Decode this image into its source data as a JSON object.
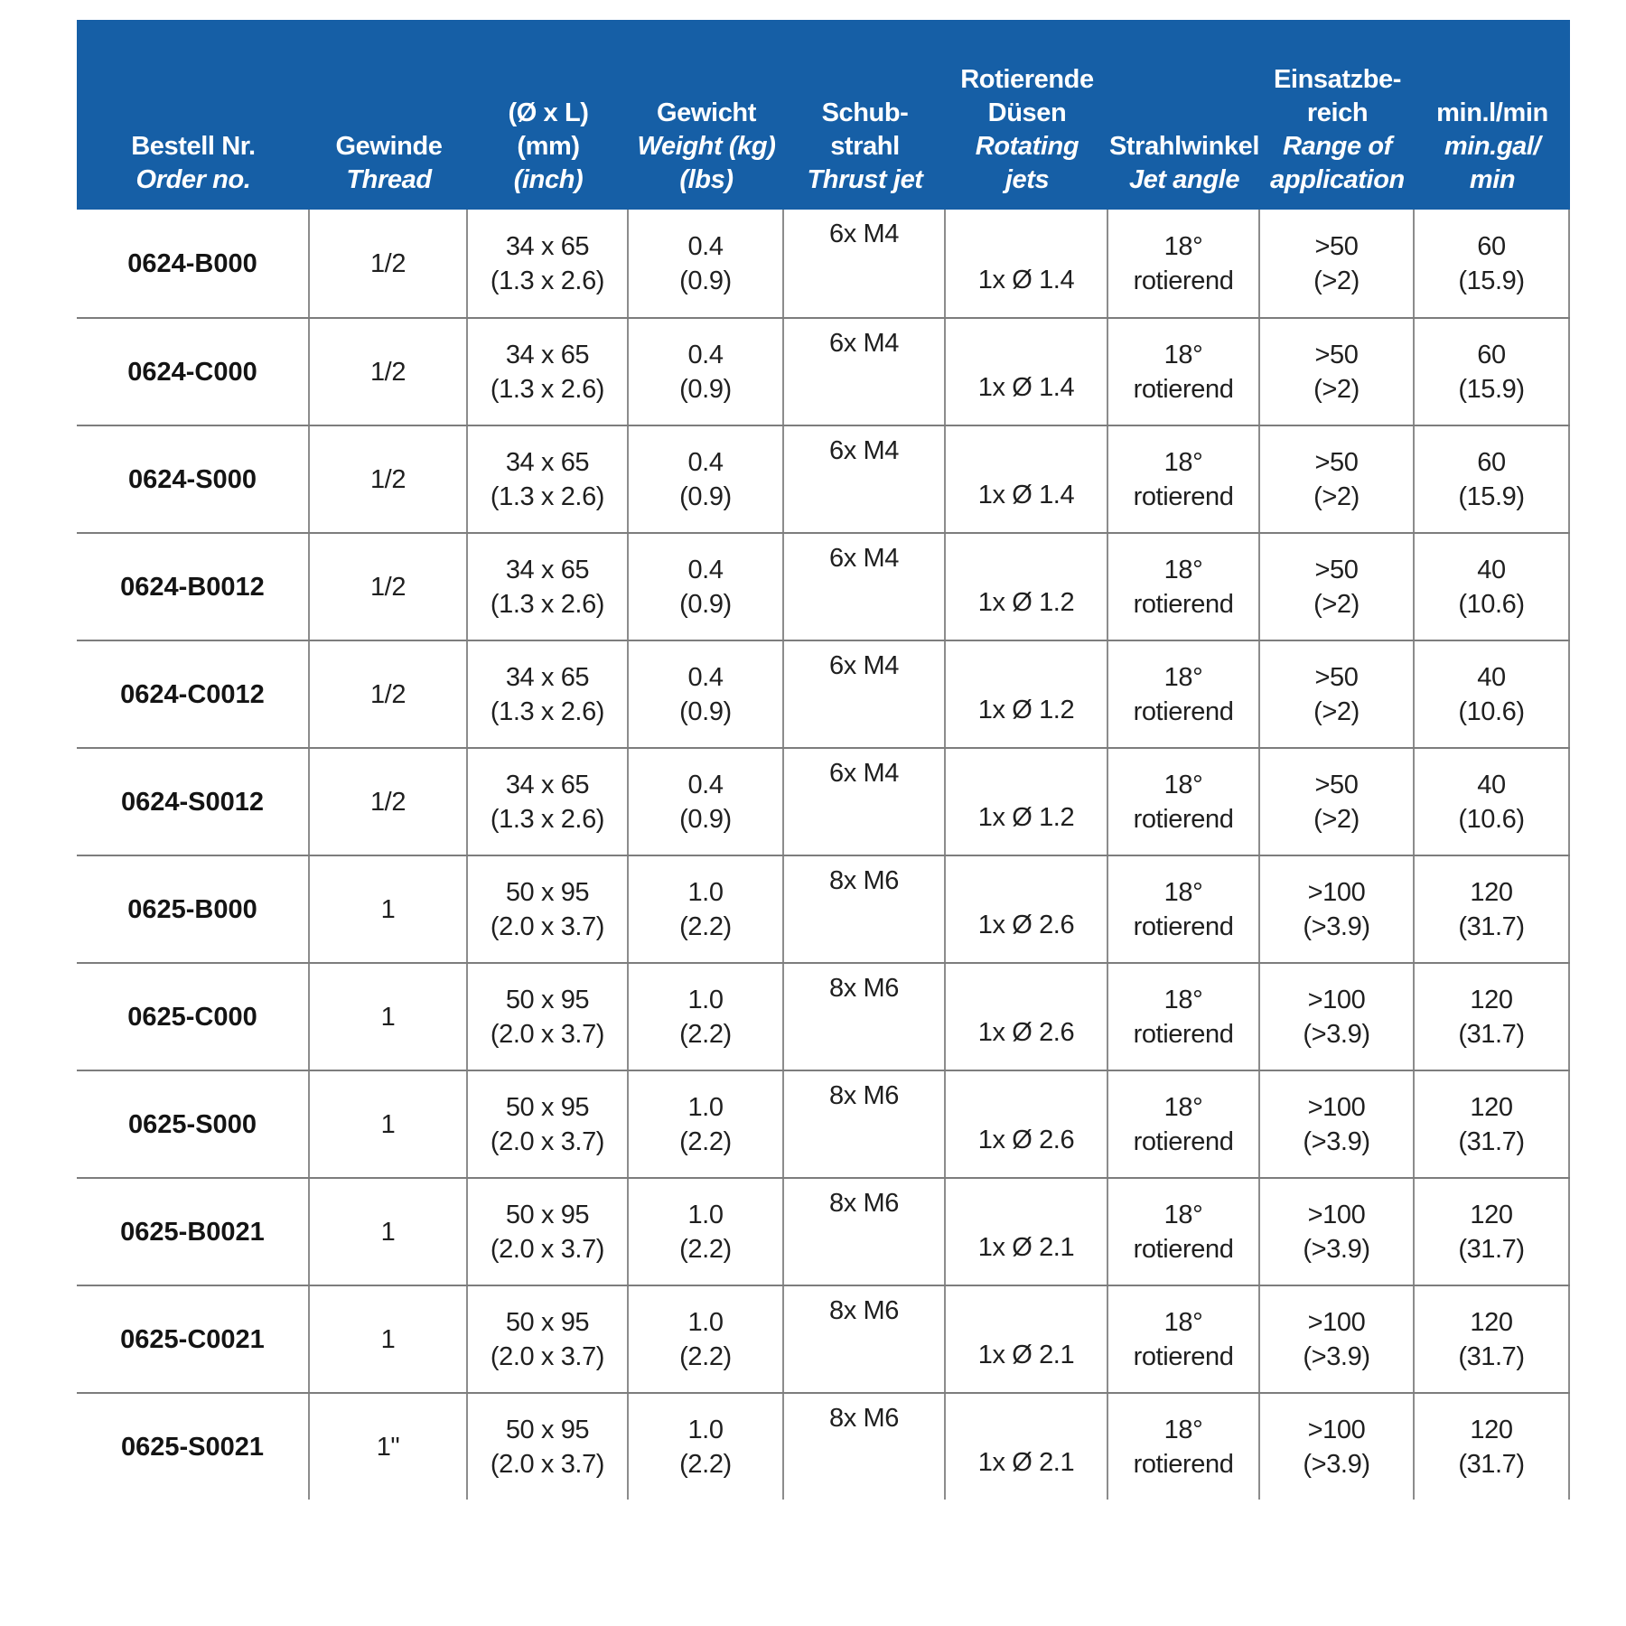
{
  "colors": {
    "header_bg": "#165fa6",
    "header_text": "#ffffff",
    "body_text": "#1f1f1f",
    "horizontal_line": "#7d7d7d",
    "vertical_line": "#8c8c8c",
    "page_bg": "#ffffff"
  },
  "table": {
    "header": {
      "columns": [
        {
          "key": "order-no",
          "lines": [
            {
              "text": "Bestell Nr.",
              "italic": false
            },
            {
              "text": "Order no.",
              "italic": true
            }
          ]
        },
        {
          "key": "thread",
          "lines": [
            {
              "text": "Gewinde",
              "italic": false
            },
            {
              "text": "Thread",
              "italic": true
            }
          ]
        },
        {
          "key": "dimensions",
          "lines": [
            {
              "text": "(Ø x L)",
              "italic": false
            },
            {
              "text": "(mm)",
              "italic": false
            },
            {
              "text": "(inch)",
              "italic": true
            }
          ]
        },
        {
          "key": "weight",
          "lines": [
            {
              "text": "Gewicht",
              "italic": false
            },
            {
              "text": "Weight (kg)",
              "italic": true
            },
            {
              "text": "(lbs)",
              "italic": true
            }
          ]
        },
        {
          "key": "thrust-jet",
          "lines": [
            {
              "text": "Schub-",
              "italic": false
            },
            {
              "text": "strahl",
              "italic": false
            },
            {
              "text": "Thrust jet",
              "italic": true
            }
          ]
        },
        {
          "key": "rotating-jets",
          "lines": [
            {
              "text": "Rotierende",
              "italic": false
            },
            {
              "text": "Düsen",
              "italic": false
            },
            {
              "text": "Rotating",
              "italic": true
            },
            {
              "text": "jets",
              "italic": true
            }
          ]
        },
        {
          "key": "jet-angle",
          "lines": [
            {
              "text": "Strahlwinkel",
              "italic": false
            },
            {
              "text": "Jet angle",
              "italic": true
            }
          ]
        },
        {
          "key": "range-of-application",
          "lines": [
            {
              "text": "Einsatzbe-",
              "italic": false
            },
            {
              "text": "reich",
              "italic": false
            },
            {
              "text": "Range of",
              "italic": true
            },
            {
              "text": "application",
              "italic": true
            }
          ]
        },
        {
          "key": "min-flow",
          "lines": [
            {
              "text": "min.l/min",
              "italic": false
            },
            {
              "text": "min.gal/",
              "italic": true
            },
            {
              "text": "min",
              "italic": true
            }
          ]
        }
      ]
    },
    "rows": [
      {
        "order_no": "0624-B000",
        "thread": "1/2",
        "dim": [
          "34 x 65",
          "(1.3 x 2.6)"
        ],
        "weight": [
          "0.4",
          "(0.9)"
        ],
        "thrust": "6x M4",
        "jets": "1x Ø 1.4",
        "angle": [
          "18°",
          "rotierend"
        ],
        "range": [
          ">50",
          "(>2)"
        ],
        "flow": [
          "60",
          "(15.9)"
        ]
      },
      {
        "order_no": "0624-C000",
        "thread": "1/2",
        "dim": [
          "34 x 65",
          "(1.3 x 2.6)"
        ],
        "weight": [
          "0.4",
          "(0.9)"
        ],
        "thrust": "6x M4",
        "jets": "1x Ø 1.4",
        "angle": [
          "18°",
          "rotierend"
        ],
        "range": [
          ">50",
          "(>2)"
        ],
        "flow": [
          "60",
          "(15.9)"
        ]
      },
      {
        "order_no": "0624-S000",
        "thread": "1/2",
        "dim": [
          "34 x 65",
          "(1.3 x 2.6)"
        ],
        "weight": [
          "0.4",
          "(0.9)"
        ],
        "thrust": "6x M4",
        "jets": "1x Ø 1.4",
        "angle": [
          "18°",
          "rotierend"
        ],
        "range": [
          ">50",
          "(>2)"
        ],
        "flow": [
          "60",
          "(15.9)"
        ]
      },
      {
        "order_no": "0624-B0012",
        "thread": "1/2",
        "dim": [
          "34 x 65",
          "(1.3 x 2.6)"
        ],
        "weight": [
          "0.4",
          "(0.9)"
        ],
        "thrust": "6x M4",
        "jets": "1x Ø 1.2",
        "angle": [
          "18°",
          "rotierend"
        ],
        "range": [
          ">50",
          "(>2)"
        ],
        "flow": [
          "40",
          "(10.6)"
        ]
      },
      {
        "order_no": "0624-C0012",
        "thread": "1/2",
        "dim": [
          "34 x 65",
          "(1.3 x 2.6)"
        ],
        "weight": [
          "0.4",
          "(0.9)"
        ],
        "thrust": "6x M4",
        "jets": "1x Ø 1.2",
        "angle": [
          "18°",
          "rotierend"
        ],
        "range": [
          ">50",
          "(>2)"
        ],
        "flow": [
          "40",
          "(10.6)"
        ]
      },
      {
        "order_no": "0624-S0012",
        "thread": "1/2",
        "dim": [
          "34 x 65",
          "(1.3 x 2.6)"
        ],
        "weight": [
          "0.4",
          "(0.9)"
        ],
        "thrust": "6x M4",
        "jets": "1x Ø 1.2",
        "angle": [
          "18°",
          "rotierend"
        ],
        "range": [
          ">50",
          "(>2)"
        ],
        "flow": [
          "40",
          "(10.6)"
        ]
      },
      {
        "order_no": "0625-B000",
        "thread": "1",
        "dim": [
          "50 x 95",
          "(2.0 x 3.7)"
        ],
        "weight": [
          "1.0",
          "(2.2)"
        ],
        "thrust": "8x M6",
        "jets": "1x Ø 2.6",
        "angle": [
          "18°",
          "rotierend"
        ],
        "range": [
          ">100",
          "(>3.9)"
        ],
        "flow": [
          "120",
          "(31.7)"
        ]
      },
      {
        "order_no": "0625-C000",
        "thread": "1",
        "dim": [
          "50 x 95",
          "(2.0 x 3.7)"
        ],
        "weight": [
          "1.0",
          "(2.2)"
        ],
        "thrust": "8x M6",
        "jets": "1x Ø 2.6",
        "angle": [
          "18°",
          "rotierend"
        ],
        "range": [
          ">100",
          "(>3.9)"
        ],
        "flow": [
          "120",
          "(31.7)"
        ]
      },
      {
        "order_no": "0625-S000",
        "thread": "1",
        "dim": [
          "50 x 95",
          "(2.0 x 3.7)"
        ],
        "weight": [
          "1.0",
          "(2.2)"
        ],
        "thrust": "8x M6",
        "jets": "1x Ø 2.6",
        "angle": [
          "18°",
          "rotierend"
        ],
        "range": [
          ">100",
          "(>3.9)"
        ],
        "flow": [
          "120",
          "(31.7)"
        ]
      },
      {
        "order_no": "0625-B0021",
        "thread": "1",
        "dim": [
          "50 x 95",
          "(2.0 x 3.7)"
        ],
        "weight": [
          "1.0",
          "(2.2)"
        ],
        "thrust": "8x M6",
        "jets": "1x Ø 2.1",
        "angle": [
          "18°",
          "rotierend"
        ],
        "range": [
          ">100",
          "(>3.9)"
        ],
        "flow": [
          "120",
          "(31.7)"
        ]
      },
      {
        "order_no": "0625-C0021",
        "thread": "1",
        "dim": [
          "50 x 95",
          "(2.0 x 3.7)"
        ],
        "weight": [
          "1.0",
          "(2.2)"
        ],
        "thrust": "8x M6",
        "jets": "1x Ø 2.1",
        "angle": [
          "18°",
          "rotierend"
        ],
        "range": [
          ">100",
          "(>3.9)"
        ],
        "flow": [
          "120",
          "(31.7)"
        ]
      },
      {
        "order_no": "0625-S0021",
        "thread": "1\"",
        "dim": [
          "50 x 95",
          "(2.0 x 3.7)"
        ],
        "weight": [
          "1.0",
          "(2.2)"
        ],
        "thrust": "8x M6",
        "jets": "1x Ø 2.1",
        "angle": [
          "18°",
          "rotierend"
        ],
        "range": [
          ">100",
          "(>3.9)"
        ],
        "flow": [
          "120",
          "(31.7)"
        ]
      }
    ]
  }
}
